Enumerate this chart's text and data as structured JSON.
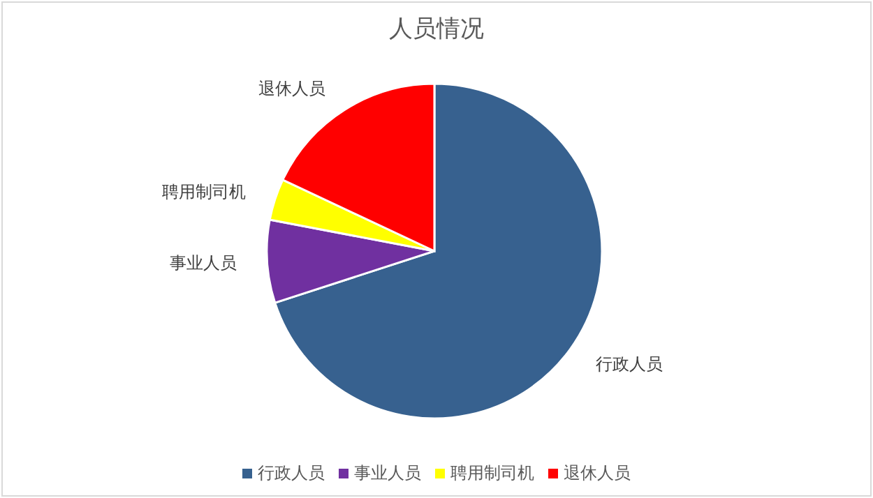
{
  "chart_data": {
    "type": "pie",
    "title": "人员情况",
    "categories": [
      "行政人员",
      "事业人员",
      "聘用制司机",
      "退休人员"
    ],
    "values": [
      70,
      8,
      4,
      18
    ],
    "colors": [
      "#37618f",
      "#7030a0",
      "#ffff00",
      "#ff0000"
    ],
    "legend": "bottom"
  }
}
